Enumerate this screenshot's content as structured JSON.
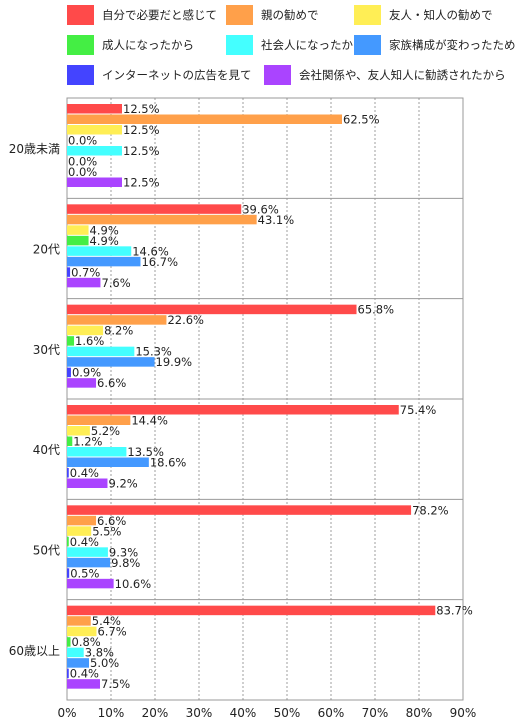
{
  "chart_data": {
    "type": "bar",
    "orientation": "horizontal",
    "categories": [
      "20歳未満",
      "20代",
      "30代",
      "40代",
      "50代",
      "60歳以上"
    ],
    "series": [
      {
        "name": "自分で必要だと感じて",
        "color": "#ff4a4a",
        "values": [
          12.5,
          39.6,
          65.8,
          75.4,
          78.2,
          83.7
        ]
      },
      {
        "name": "親の勧めで",
        "color": "#ffa04a",
        "values": [
          62.5,
          43.1,
          22.6,
          14.4,
          6.6,
          5.4
        ]
      },
      {
        "name": "友人・知人の勧めで",
        "color": "#ffee55",
        "values": [
          12.5,
          4.9,
          8.2,
          5.2,
          5.5,
          6.7
        ]
      },
      {
        "name": "成人になったから",
        "color": "#44ee44",
        "values": [
          0.0,
          4.9,
          1.6,
          1.2,
          0.4,
          0.8
        ]
      },
      {
        "name": "社会人になったから",
        "color": "#44ffff",
        "values": [
          12.5,
          14.6,
          15.3,
          13.5,
          9.3,
          3.8
        ]
      },
      {
        "name": "家族構成が変わったため",
        "color": "#4499ff",
        "values": [
          0.0,
          16.7,
          19.9,
          18.6,
          9.8,
          5.0
        ]
      },
      {
        "name": "インターネットの広告を見て",
        "color": "#4444ff",
        "values": [
          0.0,
          0.7,
          0.9,
          0.4,
          0.5,
          0.4
        ]
      },
      {
        "name": "会社関係や、友人知人に勧誘されたから",
        "color": "#aa44ff",
        "values": [
          12.5,
          7.6,
          6.6,
          9.2,
          10.6,
          7.5
        ]
      }
    ],
    "xlim": [
      0,
      90
    ],
    "xticks": [
      "0%",
      "10%",
      "20%",
      "30%",
      "40%",
      "50%",
      "60%",
      "70%",
      "80%",
      "90%"
    ],
    "value_suffix": "%",
    "grid": "vertical-dashed",
    "legend_position": "top"
  }
}
